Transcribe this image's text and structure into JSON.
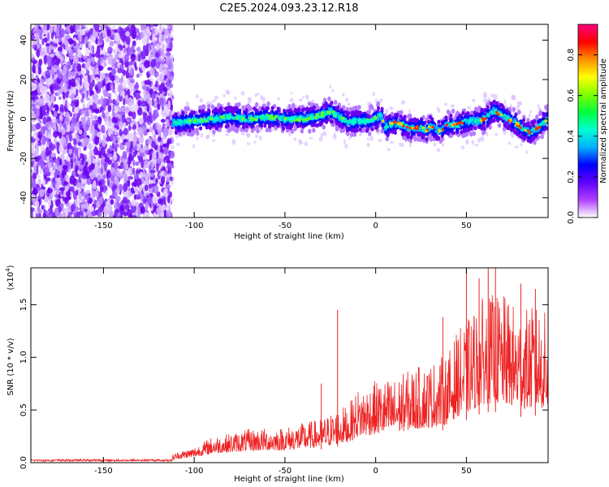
{
  "figure_title": "C2E5.2024.093.23.12.R18",
  "chart_data": [
    {
      "type": "heatmap",
      "xlabel": "Height of straight line (km)",
      "ylabel": "Frequency (Hz)",
      "xlim": [
        -190,
        95
      ],
      "ylim": [
        -50,
        48
      ],
      "xticks": [
        -150,
        -100,
        -50,
        0,
        50
      ],
      "yticks": [
        -40,
        -20,
        0,
        20,
        40
      ],
      "colorbar": {
        "label": "Normalized spectral amplitude",
        "range": [
          0,
          0.95
        ],
        "ticks": [
          0.0,
          0.2,
          0.4,
          0.6,
          0.8
        ],
        "tick_labels": [
          "0.0",
          "0.2",
          "0.4",
          "0.6",
          "0.8"
        ],
        "colors": [
          "#ffffff",
          "#b040ff",
          "#6000ff",
          "#0000ff",
          "#00b0ff",
          "#00ffd0",
          "#00ff40",
          "#80ff00",
          "#ffff00",
          "#ff9000",
          "#ff0000",
          "#ff0080"
        ]
      },
      "noise_region_x": [
        -190,
        -112
      ],
      "trace_center_freq": [
        {
          "x": -110,
          "y": -2
        },
        {
          "x": -100,
          "y": -1
        },
        {
          "x": -90,
          "y": 0
        },
        {
          "x": -80,
          "y": 1
        },
        {
          "x": -70,
          "y": 0
        },
        {
          "x": -60,
          "y": 1
        },
        {
          "x": -50,
          "y": 0
        },
        {
          "x": -40,
          "y": 0
        },
        {
          "x": -30,
          "y": 2
        },
        {
          "x": -25,
          "y": 4
        },
        {
          "x": -20,
          "y": 1
        },
        {
          "x": -15,
          "y": -2
        },
        {
          "x": -10,
          "y": -1
        },
        {
          "x": -5,
          "y": -1
        },
        {
          "x": 0,
          "y": 0
        },
        {
          "x": 3,
          "y": 2
        },
        {
          "x": 5,
          "y": -4
        },
        {
          "x": 10,
          "y": -2
        },
        {
          "x": 15,
          "y": -3
        },
        {
          "x": 20,
          "y": -5
        },
        {
          "x": 25,
          "y": -4
        },
        {
          "x": 28,
          "y": -6
        },
        {
          "x": 30,
          "y": -4
        },
        {
          "x": 35,
          "y": -6
        },
        {
          "x": 40,
          "y": -3
        },
        {
          "x": 45,
          "y": -3
        },
        {
          "x": 50,
          "y": -1
        },
        {
          "x": 55,
          "y": -1
        },
        {
          "x": 60,
          "y": 0
        },
        {
          "x": 65,
          "y": 4
        },
        {
          "x": 70,
          "y": 2
        },
        {
          "x": 75,
          "y": -1
        },
        {
          "x": 80,
          "y": -4
        },
        {
          "x": 85,
          "y": -7
        },
        {
          "x": 90,
          "y": -4
        },
        {
          "x": 95,
          "y": 0
        }
      ]
    },
    {
      "type": "line",
      "xlabel": "Height of straight line (km)",
      "ylabel": "SNR (10 * v/v)",
      "yscale_label": "(x10",
      "yscale_exponent": "4",
      "yscale_suffix": ")",
      "xlim": [
        -190,
        95
      ],
      "ylim": [
        0,
        1.85
      ],
      "xticks": [
        -150,
        -100,
        -50,
        0,
        50
      ],
      "yticks": [
        0.0,
        0.5,
        1.0,
        1.5
      ],
      "ytick_labels": [
        "0.0",
        "0.5",
        "1.0",
        "1.5"
      ],
      "color": "#ee2222",
      "envelope": [
        {
          "x": -190,
          "y": 0.03
        },
        {
          "x": -150,
          "y": 0.03
        },
        {
          "x": -115,
          "y": 0.04
        },
        {
          "x": -110,
          "y": 0.1
        },
        {
          "x": -100,
          "y": 0.15
        },
        {
          "x": -90,
          "y": 0.25
        },
        {
          "x": -80,
          "y": 0.28
        },
        {
          "x": -70,
          "y": 0.32
        },
        {
          "x": -60,
          "y": 0.33
        },
        {
          "x": -50,
          "y": 0.34
        },
        {
          "x": -40,
          "y": 0.38
        },
        {
          "x": -30,
          "y": 0.42
        },
        {
          "x": -20,
          "y": 0.52
        },
        {
          "x": -15,
          "y": 0.55
        },
        {
          "x": -10,
          "y": 0.7
        },
        {
          "x": 0,
          "y": 0.78
        },
        {
          "x": 10,
          "y": 0.8
        },
        {
          "x": 20,
          "y": 0.9
        },
        {
          "x": 30,
          "y": 0.95
        },
        {
          "x": 40,
          "y": 1.05
        },
        {
          "x": 45,
          "y": 1.25
        },
        {
          "x": 50,
          "y": 1.35
        },
        {
          "x": 60,
          "y": 1.6
        },
        {
          "x": 70,
          "y": 1.6
        },
        {
          "x": 80,
          "y": 1.45
        },
        {
          "x": 90,
          "y": 1.5
        },
        {
          "x": 95,
          "y": 1.4
        }
      ],
      "spikes": [
        {
          "x": -30,
          "y": 0.75
        },
        {
          "x": -21,
          "y": 1.45
        },
        {
          "x": 37,
          "y": 1.38
        },
        {
          "x": 50,
          "y": 1.85
        },
        {
          "x": 57,
          "y": 1.75
        },
        {
          "x": 62,
          "y": 1.85
        },
        {
          "x": 66,
          "y": 1.85
        },
        {
          "x": 80,
          "y": 1.7
        },
        {
          "x": 88,
          "y": 1.65
        }
      ]
    }
  ]
}
